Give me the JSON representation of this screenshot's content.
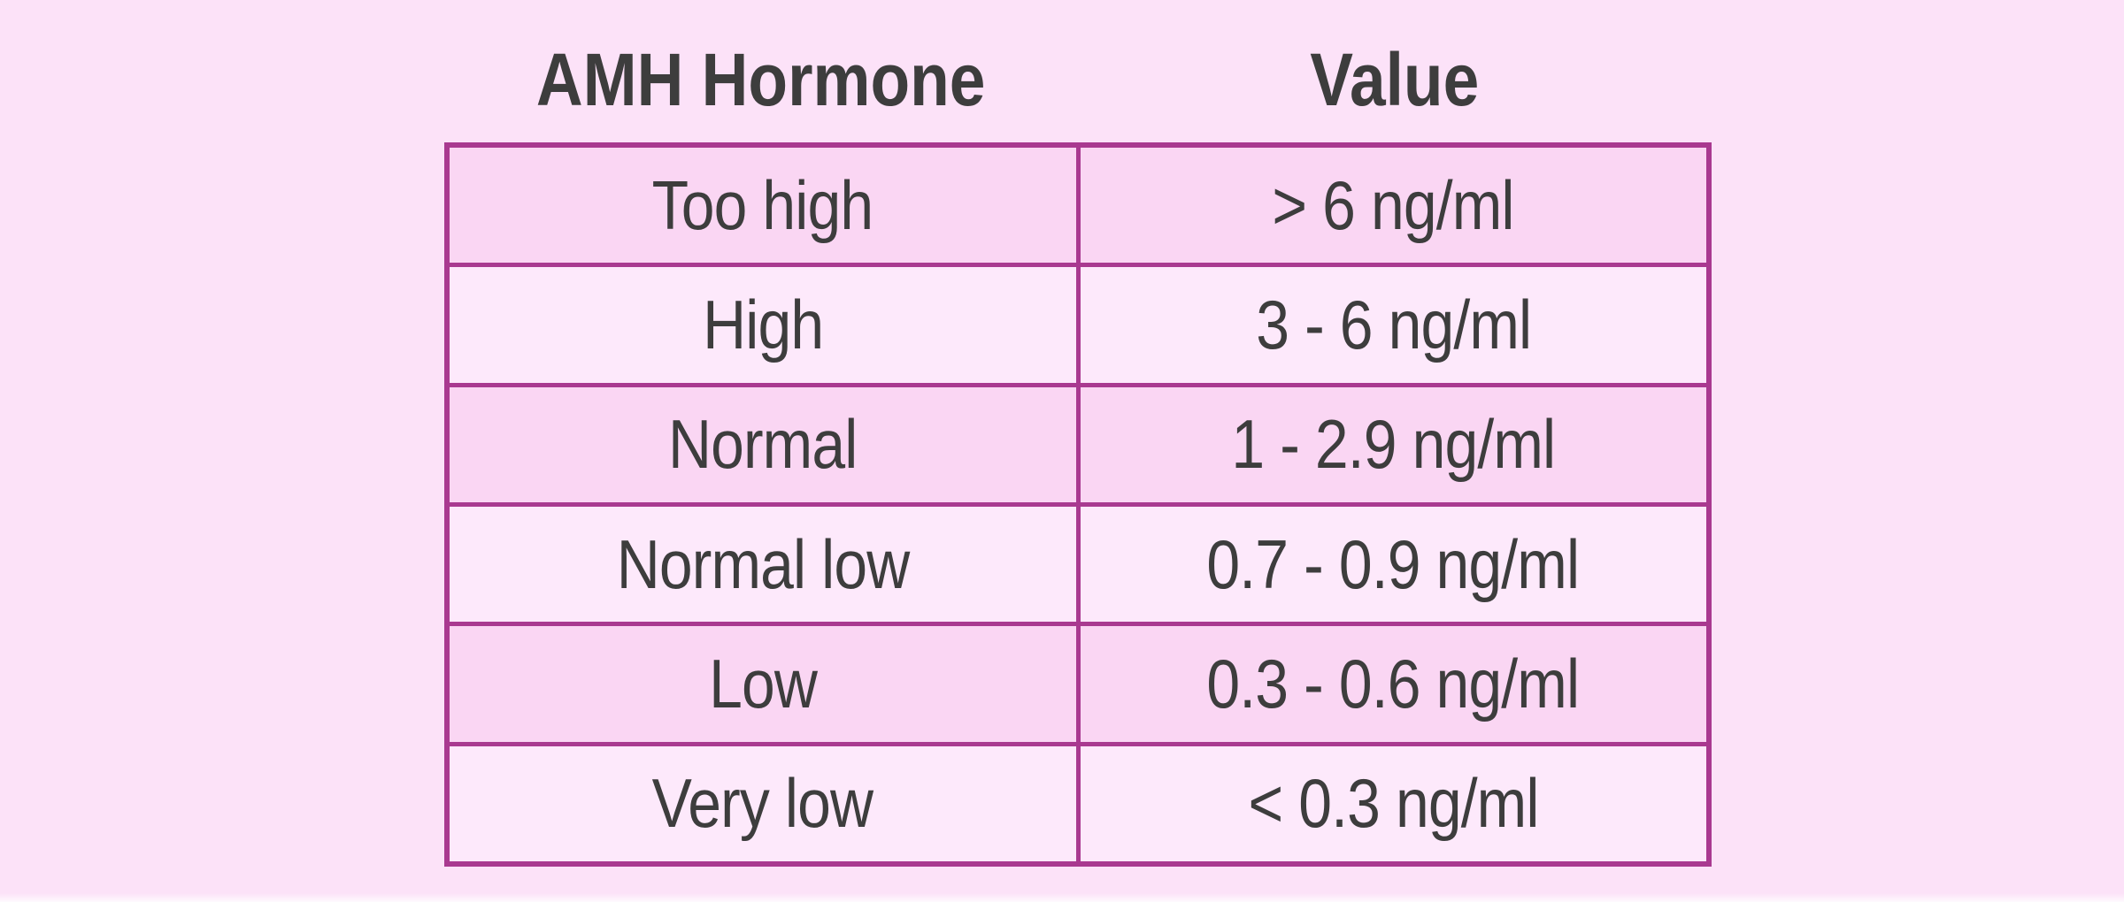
{
  "page": {
    "background_color": "#fce2f8"
  },
  "header": {
    "column1": "AMH Hormone",
    "column2": "Value"
  },
  "table": {
    "border_color": "#a93990",
    "row_dark_color": "#fad6f3",
    "row_light_color": "#fde9fb",
    "text_color": "#3d3d3d",
    "rows": [
      {
        "level": "Too high",
        "value": "> 6 ng/ml"
      },
      {
        "level": "High",
        "value": "3 - 6 ng/ml"
      },
      {
        "level": "Normal",
        "value": "1 - 2.9 ng/ml"
      },
      {
        "level": "Normal low",
        "value": "0.7 - 0.9 ng/ml"
      },
      {
        "level": "Low",
        "value": "0.3 - 0.6 ng/ml"
      },
      {
        "level": "Very low",
        "value": "< 0.3 ng/ml"
      }
    ]
  },
  "chart_data": {
    "type": "table",
    "columns": [
      "AMH Hormone",
      "Value"
    ],
    "rows": [
      [
        "Too high",
        "> 6 ng/ml"
      ],
      [
        "High",
        "3 - 6 ng/ml"
      ],
      [
        "Normal",
        "1 - 2.9 ng/ml"
      ],
      [
        "Normal low",
        "0.7 - 0.9 ng/ml"
      ],
      [
        "Low",
        "0.3 - 0.6 ng/ml"
      ],
      [
        "Very low",
        "< 0.3 ng/ml"
      ]
    ],
    "layout_hints": {
      "alternating_row_shading": true,
      "columns_equal_width": true,
      "headers_outside_table_border": true
    }
  }
}
